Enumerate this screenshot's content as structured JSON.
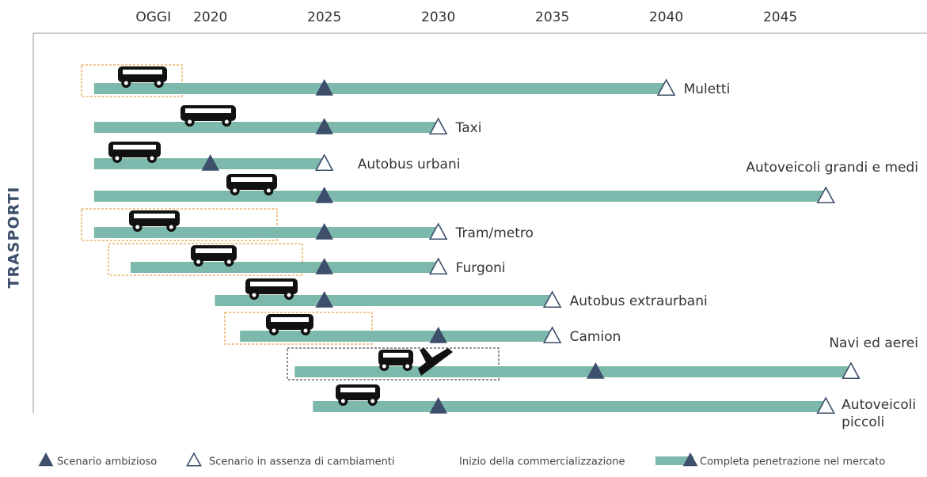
{
  "chart_data": {
    "type": "timeline",
    "axis_label": "TRASPORTI",
    "xlim": [
      2012.3,
      2051.3
    ],
    "xticks": [
      {
        "value": 2017.5,
        "label": "OGGI"
      },
      2020,
      2025,
      2030,
      2035,
      2040,
      2045
    ],
    "bar_color": "#7cb8ab",
    "marker_color": "#3d4f6b",
    "rows": [
      {
        "name": "Muletti",
        "start": 2014.9,
        "ambitious": 2025,
        "baseline": 2040,
        "highlight": "#e8a54b"
      },
      {
        "name": "Taxi",
        "start": 2014.9,
        "ambitious": 2025,
        "baseline": 2030
      },
      {
        "name": "Autobus urbani",
        "start": 2014.9,
        "ambitious": 2020,
        "baseline": 2025
      },
      {
        "name": "Autoveicoli grandi e medi",
        "start": 2014.9,
        "ambitious": 2025,
        "baseline": 2047
      },
      {
        "name": "Tram/metro",
        "start": 2014.9,
        "ambitious": 2025,
        "baseline": 2030,
        "highlight": "#e8a54b"
      },
      {
        "name": "Furgoni",
        "start": 2016.5,
        "ambitious": 2025,
        "baseline": 2030,
        "highlight": "#e8a54b"
      },
      {
        "name": "Autobus extraurbani",
        "start": 2020.2,
        "ambitious": 2025,
        "baseline": 2035
      },
      {
        "name": "Camion",
        "start": 2021.3,
        "ambitious": 2030,
        "baseline": 2035,
        "highlight": "#e8a54b"
      },
      {
        "name": "Navi ed aerei",
        "start": 2023.7,
        "ambitious": 2036.9,
        "baseline": 2048.1,
        "highlight": "#555555"
      },
      {
        "name": "Autoveicoli piccoli",
        "start": 2024.5,
        "ambitious": 2030,
        "baseline": 2047
      }
    ],
    "legend": {
      "ambitious": "Scenario ambizioso",
      "baseline": "Scenario in assenza di cambiamenti",
      "start": "Inizio della commercializzazione",
      "end": "Completa penetrazione nel mercato"
    }
  }
}
